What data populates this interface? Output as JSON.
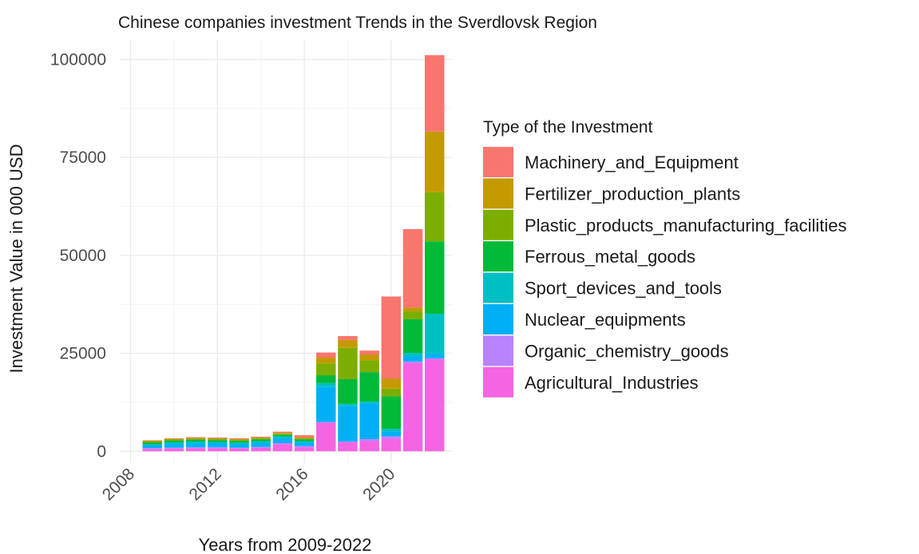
{
  "chart_data": {
    "type": "bar",
    "stacked": true,
    "title": "Chinese companies investment Trends in the Sverdlovsk Region",
    "xlabel": "Years from 2009-2022",
    "ylabel": "Investment Value in 000 USD",
    "x": [
      2009,
      2010,
      2011,
      2012,
      2013,
      2014,
      2015,
      2016,
      2017,
      2018,
      2019,
      2020,
      2021,
      2022
    ],
    "xlim": [
      2007.5,
      2022.8
    ],
    "ylim": [
      -3000,
      105000
    ],
    "x_ticks": [
      2008,
      2012,
      2016,
      2020
    ],
    "y_ticks": [
      0,
      25000,
      50000,
      75000,
      100000
    ],
    "grid": true,
    "legend": {
      "title": "Type of the Investment",
      "position": "right"
    },
    "series": [
      {
        "name": "Agricultural_Industries",
        "color": "#F564E3",
        "values": [
          600,
          700,
          800,
          800,
          700,
          900,
          1800,
          1000,
          7200,
          2200,
          2600,
          3200,
          22500,
          23500
        ]
      },
      {
        "name": "Organic_chemistry_goods",
        "color": "#B983FF",
        "values": [
          200,
          200,
          200,
          200,
          200,
          200,
          300,
          300,
          300,
          300,
          500,
          600,
          400,
          200
        ]
      },
      {
        "name": "Nuclear_equipments",
        "color": "#00B0F6",
        "values": [
          700,
          900,
          1000,
          1000,
          900,
          1000,
          1200,
          800,
          8900,
          9000,
          9000,
          1300,
          1200,
          1200
        ]
      },
      {
        "name": "Sport_devices_and_tools",
        "color": "#00BFC4",
        "values": [
          300,
          500,
          500,
          400,
          400,
          500,
          500,
          500,
          1000,
          600,
          600,
          600,
          1000,
          10200
        ]
      },
      {
        "name": "Ferrous_metal_goods",
        "color": "#00BA38",
        "values": [
          400,
          400,
          400,
          400,
          400,
          400,
          400,
          400,
          2000,
          6300,
          7500,
          8300,
          8600,
          18500
        ]
      },
      {
        "name": "Plastic_products_manufacturing_facilities",
        "color": "#7CAE00",
        "values": [
          300,
          300,
          300,
          300,
          300,
          300,
          300,
          300,
          3000,
          8000,
          3000,
          2000,
          2000,
          12500
        ]
      },
      {
        "name": "Fertilizer_production_plants",
        "color": "#C49A00",
        "values": [
          200,
          200,
          200,
          200,
          200,
          200,
          200,
          200,
          1500,
          2000,
          1500,
          2500,
          1000,
          15500
        ]
      },
      {
        "name": "Machinery_and_Equipment",
        "color": "#F8766D",
        "values": [
          100,
          100,
          200,
          200,
          200,
          200,
          300,
          600,
          1300,
          1000,
          1000,
          21000,
          20000,
          19500
        ]
      }
    ],
    "legend_order": [
      "Machinery_and_Equipment",
      "Fertilizer_production_plants",
      "Plastic_products_manufacturing_facilities",
      "Ferrous_metal_goods",
      "Sport_devices_and_tools",
      "Nuclear_equipments",
      "Organic_chemistry_goods",
      "Agricultural_Industries"
    ]
  }
}
